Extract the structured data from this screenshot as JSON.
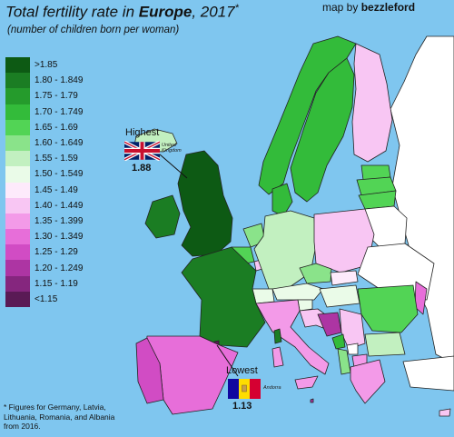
{
  "header": {
    "title_part1": "Total fertility rate in ",
    "title_bold": "Europe",
    "title_part2": ", 2017",
    "title_star": "*",
    "subtitle": "(number of children born per woman)",
    "credit_prefix": "map by ",
    "credit_author": "bezzleford"
  },
  "legend": [
    {
      "label": ">1.85",
      "color": "#0d5a14"
    },
    {
      "label": "1.80 - 1.849",
      "color": "#1b7d23"
    },
    {
      "label": "1.75 - 1.79",
      "color": "#259b2c"
    },
    {
      "label": "1.70 - 1.749",
      "color": "#33bb3a"
    },
    {
      "label": "1.65 - 1.69",
      "color": "#52d455"
    },
    {
      "label": "1.60 - 1.649",
      "color": "#8ae38a"
    },
    {
      "label": "1.55 - 1.59",
      "color": "#c2f0c0"
    },
    {
      "label": "1.50 - 1.549",
      "color": "#eafbe8"
    },
    {
      "label": "1.45 - 1.49",
      "color": "#fdeafb"
    },
    {
      "label": "1.40 - 1.449",
      "color": "#f8c6f3"
    },
    {
      "label": "1.35 - 1.399",
      "color": "#f39ae8"
    },
    {
      "label": "1.30 - 1.349",
      "color": "#e76ed9"
    },
    {
      "label": "1.25 - 1.29",
      "color": "#d14cc4"
    },
    {
      "label": "1.20 - 1.249",
      "color": "#ad35a3"
    },
    {
      "label": "1.15 - 1.19",
      "color": "#85267e"
    },
    {
      "label": "<1.15",
      "color": "#5a1a55"
    }
  ],
  "highest": {
    "heading": "Highest",
    "country": "United Kingdom",
    "value": "1.88"
  },
  "lowest": {
    "heading": "Lowest",
    "country": "Andorra",
    "value": "1.13"
  },
  "footnote": "* Figures for Germany, Latvia, Lithuania, Romania, and Albania from 2016.",
  "colors": {
    "sea": "#7fc6ef",
    "outside": "#ffffff",
    "border": "#222222"
  }
}
